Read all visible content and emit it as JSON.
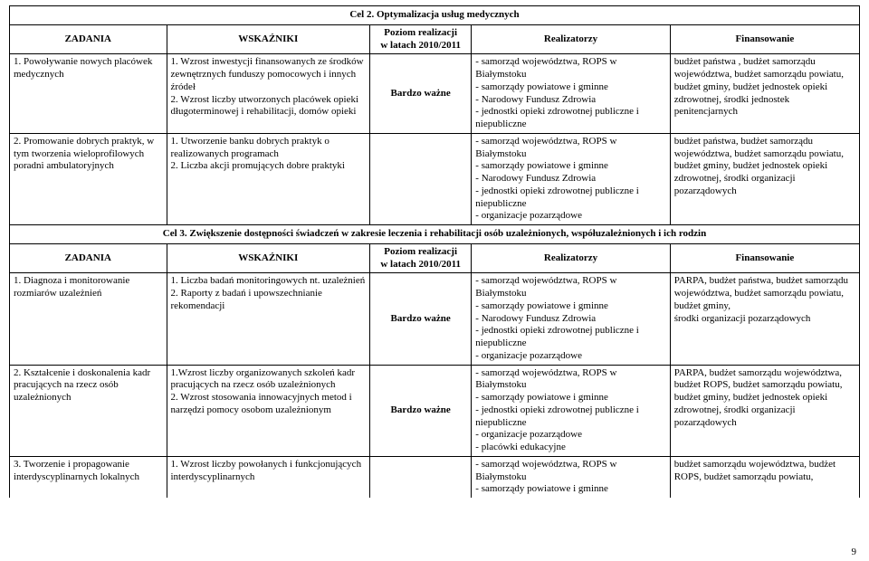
{
  "colhdr": {
    "c1": "ZADANIA",
    "c2": "WSKAŹNIKI",
    "c3a": "Poziom realizacji",
    "c3b": "w latach 2010/2011",
    "c4": "Realizatorzy",
    "c5": "Finansowanie"
  },
  "sec2": {
    "title": "Cel 2.  Optymalizacja usług medycznych",
    "rows": [
      {
        "task": "1. Powoływanie nowych placówek medycznych",
        "ind": "1. Wzrost inwestycji finansowanych ze środków zewnętrznych funduszy pomocowych i innych źródeł\n2. Wzrost liczby utworzonych placówek opieki długoterminowej i rehabilitacji, domów opieki",
        "pri": "Bardzo ważne",
        "real": "- samorząd województwa, ROPS w Białymstoku\n- samorządy  powiatowe i gminne\n- Narodowy Fundusz Zdrowia\n- jednostki opieki zdrowotnej publiczne i niepubliczne",
        "fin": "budżet państwa , budżet samorządu województwa, budżet samorządu powiatu, budżet gminy, budżet jednostek opieki zdrowotnej, środki jednostek penitencjarnych"
      },
      {
        "task": "2. Promowanie dobrych praktyk, w tym tworzenia wieloprofilowych poradni ambulatoryjnych",
        "ind": "1. Utworzenie banku dobrych praktyk o realizowanych programach\n2. Liczba akcji promujących dobre praktyki",
        "pri": "",
        "real": "- samorząd województwa, ROPS w Białymstoku\n- samorządy  powiatowe i gminne\n- Narodowy Fundusz Zdrowia\n- jednostki opieki zdrowotnej publiczne i niepubliczne\n- organizacje pozarządowe",
        "fin": "budżet państwa, budżet samorządu województwa, budżet samorządu powiatu, budżet gminy, budżet jednostek opieki zdrowotnej, środki organizacji pozarządowych"
      }
    ]
  },
  "sec3": {
    "title": "Cel 3.  Zwiększenie dostępności świadczeń w zakresie leczenia i rehabilitacji  osób  uzależnionych, współuzależnionych i ich rodzin",
    "rows": [
      {
        "task": "1. Diagnoza i monitorowanie rozmiarów uzależnień",
        "ind": "1. Liczba badań monitoringowych nt. uzależnień\n2. Raporty z badań i  upowszechnianie rekomendacji",
        "pri": "Bardzo ważne",
        "real": "- samorząd województwa, ROPS w Białymstoku\n- samorządy  powiatowe i gminne\n- Narodowy Fundusz Zdrowia\n- jednostki opieki zdrowotnej publiczne i niepubliczne\n- organizacje pozarządowe",
        "fin": "PARPA, budżet państwa, budżet samorządu województwa, budżet samorządu powiatu, budżet gminy,\nśrodki organizacji pozarządowych"
      },
      {
        "task": "2. Kształcenie i doskonalenia kadr pracujących na rzecz osób uzależnionych",
        "ind": "1.Wzrost liczby organizowanych szkoleń kadr pracujących na rzecz osób uzależnionych\n2. Wzrost stosowania innowacyjnych metod i narzędzi pomocy osobom uzależnionym",
        "pri": "Bardzo ważne",
        "real": "- samorząd województwa, ROPS w Białymstoku\n- samorządy  powiatowe i gminne\n- jednostki opieki zdrowotnej publiczne i niepubliczne\n- organizacje pozarządowe\n- placówki edukacyjne",
        "fin": "PARPA, budżet samorządu województwa, budżet ROPS, budżet samorządu powiatu, budżet gminy, budżet jednostek opieki zdrowotnej, środki organizacji pozarządowych"
      },
      {
        "task": "3. Tworzenie i propagowanie interdyscyplinarnych lokalnych",
        "ind": "1. Wzrost liczby powołanych i funkcjonujących interdyscyplinarnych",
        "pri": "",
        "real": "- samorząd województwa, ROPS w Białymstoku\n- samorządy  powiatowe i gminne",
        "fin": "budżet samorządu województwa, budżet ROPS, budżet samorządu powiatu,"
      }
    ]
  },
  "pagenum": "9"
}
